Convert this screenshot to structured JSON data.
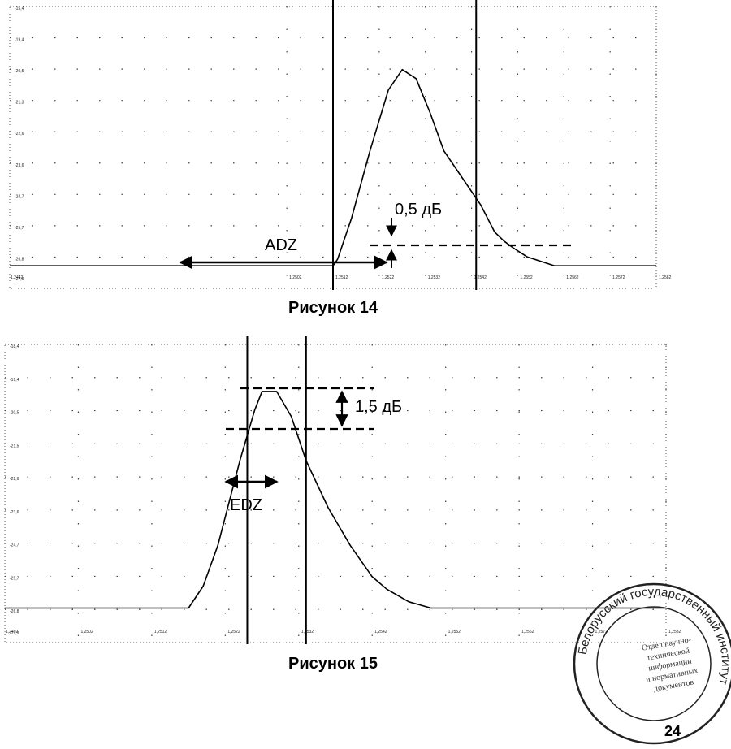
{
  "figures": [
    {
      "id": "fig14",
      "caption": "Рисунок 14",
      "chart_data": {
        "type": "line",
        "y_ticks": [
          "-15,4",
          "-19,4",
          "-20,5",
          "-21,3",
          "-22,6",
          "-23,6",
          "-24,7",
          "-25,7",
          "-26,8",
          "-27,9"
        ],
        "x_ticks": [
          "1,2442",
          "1,2502",
          "1,2512",
          "1,2522",
          "1,2532",
          "1,2542",
          "1,2552",
          "1,2562",
          "1,2572",
          "1,2582"
        ],
        "y_range": [
          -27.9,
          -15.4
        ],
        "series": [
          {
            "x": [
              1.2442,
              1.2512,
              1.2513,
              1.2516,
              1.252,
              1.2524,
              1.2527,
              1.253,
              1.2533,
              1.2536,
              1.254,
              1.2544,
              1.2547,
              1.2549,
              1.2551,
              1.2554,
              1.256,
              1.2582
            ],
            "y": [
              -26.9,
              -26.9,
              -26.6,
              -24.8,
              -21.8,
              -19.1,
              -18.2,
              -18.6,
              -20.1,
              -21.8,
              -23.0,
              -24.2,
              -25.4,
              -25.8,
              -26.1,
              -26.5,
              -26.9,
              -26.9
            ]
          }
        ],
        "markers": {
          "vertical_lines_x": [
            1.2512,
            1.2543
          ]
        },
        "annotations": {
          "level_label": "0,5 дБ",
          "zone_label": "ADZ"
        }
      }
    },
    {
      "id": "fig15",
      "caption": "Рисунок 15",
      "chart_data": {
        "type": "line",
        "y_ticks": [
          "-18,4",
          "-19,4",
          "-20,5",
          "-21,5",
          "-22,6",
          "-23,6",
          "-24,7",
          "-25,7",
          "-26,8",
          "-27,9"
        ],
        "x_ticks": [
          "1,2492",
          "1,2502",
          "1,2512",
          "1,2522",
          "1,2532",
          "1,2542",
          "1,2552",
          "1,2562",
          "1,2572",
          "1,2582"
        ],
        "y_range": [
          -27.9,
          -18.4
        ],
        "series": [
          {
            "x": [
              1.2492,
              1.2517,
              1.2519,
              1.2521,
              1.2524,
              1.2526,
              1.2527,
              1.2529,
              1.2531,
              1.2533,
              1.2536,
              1.2539,
              1.2542,
              1.2544,
              1.2547,
              1.255,
              1.2566,
              1.2582
            ],
            "y": [
              -26.8,
              -26.8,
              -26.1,
              -24.8,
              -22.1,
              -20.5,
              -19.9,
              -19.9,
              -20.7,
              -22.1,
              -23.6,
              -24.8,
              -25.8,
              -26.2,
              -26.6,
              -26.8,
              -26.8,
              -26.8
            ]
          }
        ],
        "markers": {
          "vertical_lines_x": [
            1.2525,
            1.2533
          ]
        },
        "annotations": {
          "level_label": "1,5 дБ",
          "zone_label": "EDZ"
        }
      }
    }
  ],
  "stamp": {
    "ring_text": "Белорусский государственный институт",
    "center_lines": [
      "Отдел научно-",
      "технической",
      "информации",
      "и нормативных",
      "документов"
    ]
  },
  "page_number": "24"
}
